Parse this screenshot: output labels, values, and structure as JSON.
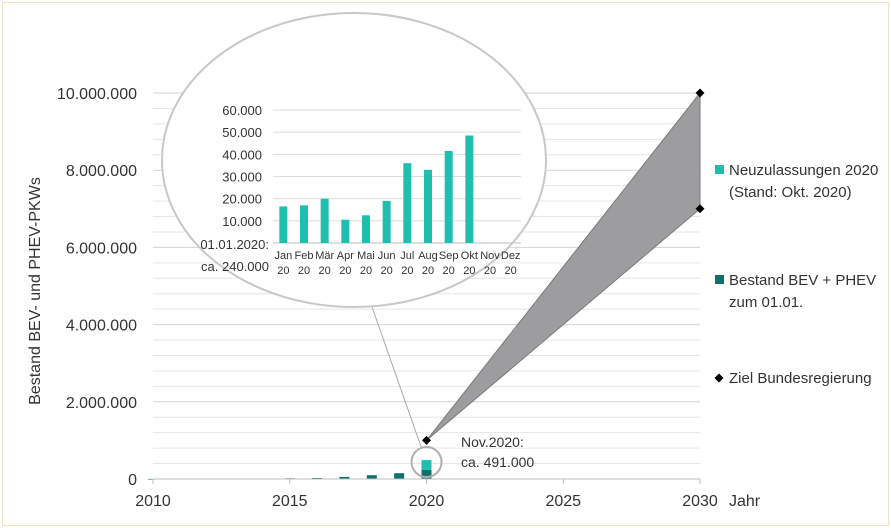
{
  "chart_data": [
    {
      "type": "bar",
      "title": "",
      "xlabel": "Jahr",
      "ylabel": "Bestand BEV- und PHEV-PKWs",
      "xlim": [
        2010,
        2030
      ],
      "ylim": [
        0,
        10000000
      ],
      "x_ticks": [
        "2010",
        "2015",
        "2020",
        "2025",
        "2030"
      ],
      "y_ticks": [
        "0",
        "2.000.000",
        "4.000.000",
        "6.000.000",
        "8.000.000",
        "10.000.000"
      ],
      "grid": true,
      "legend_position": "right",
      "series": [
        {
          "name": "Neuzulassungen 2020 (Stand: Okt. 2020)",
          "color": "#1fbfb0",
          "x": [
            2020
          ],
          "values": [
            251000
          ]
        },
        {
          "name": "Bestand BEV + PHEV zum 01.01.",
          "color": "#0e7068",
          "x": [
            2010,
            2011,
            2012,
            2013,
            2014,
            2015,
            2016,
            2017,
            2018,
            2019,
            2020
          ],
          "values": [
            1800,
            2500,
            4500,
            7000,
            12000,
            19000,
            25500,
            54000,
            98000,
            150000,
            240000
          ]
        },
        {
          "name": "Ziel Bundesregierung",
          "color": "#000000",
          "x": [
            2020,
            2030,
            2030
          ],
          "values": [
            1000000,
            10000000,
            7000000
          ]
        }
      ],
      "legend_lines": [
        [
          "Neuzulassungen 2020",
          "(Stand: Okt. 2020)"
        ],
        [
          "Bestand BEV + PHEV",
          "zum 01.01."
        ],
        [
          "Ziel Bundesregierung"
        ]
      ],
      "annotations": {
        "nov_label_1": "Nov.2020:",
        "nov_label_2": "ca. 491.000"
      }
    },
    {
      "type": "bar",
      "title": "",
      "ylim": [
        0,
        60000
      ],
      "y_ticks": [
        "10.000",
        "20.000",
        "30.000",
        "40.000",
        "50.000",
        "60.000"
      ],
      "categories": [
        "Jan 20",
        "Feb 20",
        "Mär 20",
        "Apr 20",
        "Mai 20",
        "Jun 20",
        "Jul 20",
        "Aug 20",
        "Sep 20",
        "Okt 20",
        "Nov 20",
        "Dez 20"
      ],
      "category_lines": [
        [
          "Jan",
          "20"
        ],
        [
          "Feb",
          "20"
        ],
        [
          "Mär",
          "20"
        ],
        [
          "Apr",
          "20"
        ],
        [
          "Mai",
          "20"
        ],
        [
          "Jun",
          "20"
        ],
        [
          "Jul",
          "20"
        ],
        [
          "Aug",
          "20"
        ],
        [
          "Sep",
          "20"
        ],
        [
          "Okt",
          "20"
        ],
        [
          "Nov",
          "20"
        ],
        [
          "Dez",
          "20"
        ]
      ],
      "values": [
        16500,
        17000,
        20000,
        10500,
        12500,
        19000,
        36000,
        33000,
        41500,
        48500,
        null,
        null
      ],
      "color": "#1fbfb0",
      "annotations": {
        "base_label_1": "01.01.2020:",
        "base_label_2": "ca. 240.000"
      }
    }
  ]
}
